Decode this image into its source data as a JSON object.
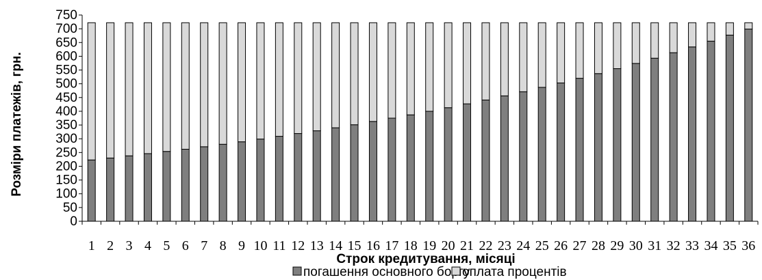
{
  "chart_data": {
    "type": "bar",
    "stacked": true,
    "ylabel": "Розміри платежів, грн.",
    "xlabel": "Строк кредитування, місяці",
    "ylim": [
      0,
      750
    ],
    "yticks": [
      0,
      50,
      100,
      150,
      200,
      250,
      300,
      350,
      400,
      450,
      500,
      550,
      600,
      650,
      700,
      750
    ],
    "categories": [
      "1",
      "2",
      "3",
      "4",
      "5",
      "6",
      "7",
      "8",
      "9",
      "10",
      "11",
      "12",
      "13",
      "14",
      "15",
      "16",
      "17",
      "18",
      "19",
      "20",
      "21",
      "22",
      "23",
      "24",
      "25",
      "26",
      "27",
      "28",
      "29",
      "30",
      "31",
      "32",
      "33",
      "34",
      "35",
      "36"
    ],
    "series": [
      {
        "name": "погашення основного боргу",
        "color": "#7f7f7f",
        "values": [
          223,
          230,
          238,
          246,
          254,
          262,
          271,
          280,
          289,
          299,
          309,
          319,
          329,
          340,
          351,
          363,
          375,
          387,
          400,
          413,
          427,
          441,
          456,
          471,
          487,
          503,
          520,
          537,
          555,
          574,
          593,
          613,
          634,
          655,
          677,
          699
        ]
      },
      {
        "name": "оплата процентів",
        "color": "#d9d9d9",
        "values": [
          499,
          492,
          484,
          476,
          468,
          460,
          451,
          442,
          433,
          423,
          413,
          403,
          393,
          382,
          371,
          359,
          347,
          335,
          322,
          309,
          295,
          281,
          266,
          251,
          235,
          219,
          202,
          185,
          167,
          148,
          129,
          109,
          88,
          67,
          45,
          23
        ]
      }
    ],
    "legend": "bottom",
    "grid": false
  }
}
